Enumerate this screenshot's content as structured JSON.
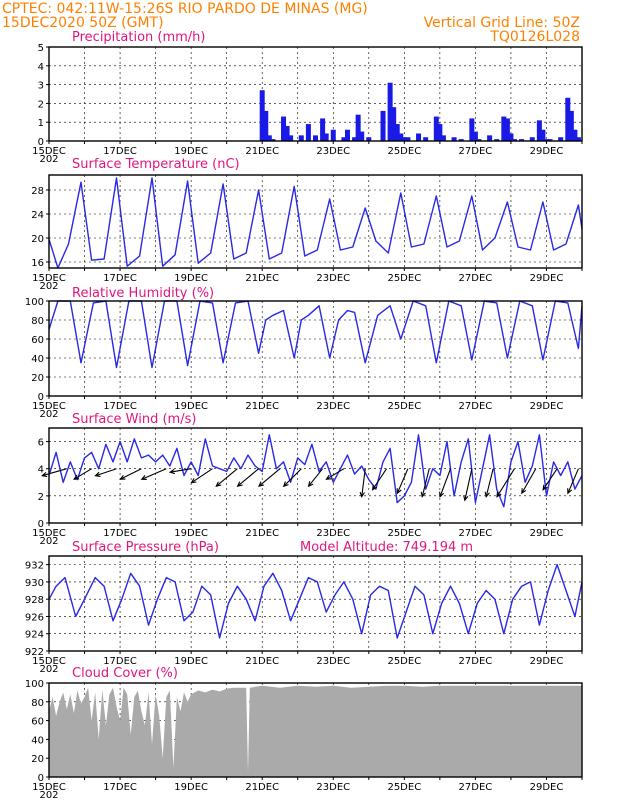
{
  "header": {
    "left_line1": "CPTEC:   042:11W-15:26S  RIO PARDO DE MINAS (MG)",
    "left_line2": "15DEC2020 50Z (GMT)",
    "right_line2": "Vertical Grid Line: 50Z",
    "right_line3": "TQ0126L028"
  },
  "colors": {
    "line": "#2929e6",
    "bars": "#1a1ae6",
    "cloud": "#aaaaaa",
    "title": "#e0167e",
    "header": "#ff8000"
  },
  "x_axis": {
    "start_day": 15,
    "end_day": 30,
    "tick_labels": [
      "15DEC",
      "17DEC",
      "19DEC",
      "21DEC",
      "23DEC",
      "25DEC",
      "27DEC",
      "29DEC"
    ],
    "year_label": "202"
  },
  "chart_data": [
    {
      "type": "bar",
      "title": "Precipitation (mm/h)",
      "ylim": [
        0,
        5
      ],
      "yticks": [
        0,
        1,
        2,
        3,
        4,
        5
      ],
      "series": [
        {
          "x": [
            21.0,
            21.1,
            21.2,
            21.3,
            21.6,
            21.7,
            21.8,
            22.1,
            22.3,
            22.5,
            22.7,
            22.8,
            23.0,
            23.3,
            23.4,
            23.6,
            23.7,
            23.8,
            24.0,
            24.4,
            24.6,
            24.7,
            24.8,
            24.9,
            25.0,
            25.1,
            25.4,
            25.6,
            25.9,
            26.0,
            26.1,
            26.4,
            26.6,
            26.9,
            27.0,
            27.1,
            27.4,
            27.6,
            27.8,
            27.9,
            28.0,
            28.1,
            28.3,
            28.6,
            28.8,
            28.9,
            29.0,
            29.1,
            29.4,
            29.6,
            29.7,
            29.8,
            29.9
          ],
          "values": [
            2.7,
            1.6,
            0.3,
            0.1,
            1.3,
            0.8,
            0.3,
            0.3,
            0.9,
            0.3,
            1.2,
            0.4,
            0.6,
            0.2,
            0.6,
            0.2,
            1.4,
            0.5,
            0.2,
            1.6,
            3.1,
            1.8,
            0.9,
            0.4,
            0.2,
            0.2,
            0.4,
            0.2,
            1.3,
            0.9,
            0.3,
            0.2,
            0.1,
            1.2,
            0.5,
            0.1,
            0.3,
            0.1,
            1.3,
            1.2,
            0.4,
            0.1,
            0.1,
            0.2,
            1.1,
            0.6,
            0.1,
            0.1,
            0.2,
            2.3,
            1.6,
            0.6,
            0.2
          ]
        }
      ]
    },
    {
      "type": "line",
      "title": "Surface Temperature (nC)",
      "ylim": [
        15,
        30.5
      ],
      "yticks": [
        16,
        20,
        24,
        28
      ],
      "series": [
        {
          "x": [
            15.0,
            15.25,
            15.55,
            15.9,
            16.2,
            16.55,
            16.9,
            17.2,
            17.55,
            17.9,
            18.2,
            18.55,
            18.9,
            19.2,
            19.55,
            19.9,
            20.2,
            20.55,
            20.9,
            21.2,
            21.55,
            21.9,
            22.2,
            22.55,
            22.9,
            23.2,
            23.55,
            23.9,
            24.2,
            24.55,
            24.9,
            25.2,
            25.55,
            25.9,
            26.2,
            26.55,
            26.9,
            27.2,
            27.55,
            27.9,
            28.2,
            28.55,
            28.9,
            29.2,
            29.55,
            29.9,
            30.0
          ],
          "values": [
            19.8,
            15.0,
            19.0,
            29.3,
            16.3,
            16.5,
            30.0,
            15.3,
            17.0,
            30.0,
            15.3,
            17.2,
            29.5,
            15.8,
            17.5,
            29.0,
            16.5,
            17.5,
            28.0,
            16.5,
            17.5,
            28.6,
            17.0,
            18.0,
            26.5,
            18.0,
            18.5,
            25.0,
            19.5,
            17.5,
            27.5,
            18.5,
            19.0,
            27.0,
            18.5,
            19.5,
            27.0,
            18.0,
            20.0,
            26.0,
            18.5,
            18.0,
            26.0,
            18.0,
            19.0,
            25.5,
            21.5
          ]
        }
      ]
    },
    {
      "type": "line",
      "title": "Relative Humidity (%)",
      "ylim": [
        0,
        100
      ],
      "yticks": [
        0,
        20,
        40,
        60,
        80,
        100
      ],
      "series": [
        {
          "x": [
            15.0,
            15.25,
            15.6,
            15.9,
            16.25,
            16.6,
            16.9,
            17.25,
            17.6,
            17.9,
            18.25,
            18.6,
            18.9,
            19.25,
            19.6,
            19.9,
            20.25,
            20.6,
            20.9,
            21.1,
            21.3,
            21.6,
            21.9,
            22.1,
            22.3,
            22.6,
            22.9,
            23.15,
            23.4,
            23.6,
            23.9,
            24.25,
            24.6,
            24.9,
            25.25,
            25.6,
            25.9,
            26.25,
            26.6,
            26.9,
            27.25,
            27.6,
            27.9,
            28.25,
            28.6,
            28.9,
            29.25,
            29.6,
            29.9,
            30.0
          ],
          "values": [
            70,
            100,
            100,
            35,
            98,
            100,
            30,
            100,
            100,
            30,
            100,
            100,
            32,
            100,
            98,
            35,
            98,
            100,
            45,
            80,
            85,
            90,
            40,
            80,
            85,
            95,
            40,
            80,
            90,
            88,
            35,
            85,
            95,
            60,
            100,
            95,
            35,
            100,
            95,
            38,
            100,
            98,
            40,
            100,
            95,
            38,
            100,
            98,
            50,
            95
          ]
        }
      ]
    },
    {
      "type": "line",
      "title": "Surface Wind (m/s)",
      "ylim": [
        0,
        7
      ],
      "yticks": [
        0,
        2,
        4,
        6
      ],
      "series": [
        {
          "x": [
            15.0,
            15.2,
            15.4,
            15.6,
            15.8,
            16.0,
            16.2,
            16.4,
            16.6,
            16.8,
            17.0,
            17.2,
            17.4,
            17.6,
            17.8,
            18.0,
            18.2,
            18.4,
            18.6,
            18.8,
            19.0,
            19.2,
            19.4,
            19.6,
            19.8,
            20.0,
            20.2,
            20.4,
            20.6,
            20.8,
            21.0,
            21.2,
            21.4,
            21.6,
            21.8,
            22.0,
            22.2,
            22.4,
            22.6,
            22.8,
            23.0,
            23.2,
            23.4,
            23.6,
            23.8,
            24.0,
            24.2,
            24.4,
            24.6,
            24.8,
            25.0,
            25.2,
            25.4,
            25.6,
            25.8,
            26.0,
            26.2,
            26.4,
            26.6,
            26.8,
            27.0,
            27.2,
            27.4,
            27.6,
            27.8,
            28.0,
            28.2,
            28.4,
            28.6,
            28.8,
            29.0,
            29.2,
            29.4,
            29.6,
            29.8,
            30.0
          ],
          "values": [
            3.5,
            5.2,
            3.0,
            4.5,
            3.2,
            4.8,
            5.2,
            4.0,
            5.8,
            4.5,
            6.0,
            4.5,
            6.2,
            4.8,
            5.0,
            4.5,
            5.0,
            4.2,
            5.5,
            3.5,
            4.5,
            3.5,
            6.2,
            4.2,
            4.0,
            3.8,
            4.8,
            4.0,
            5.0,
            4.2,
            3.8,
            6.5,
            4.0,
            4.5,
            3.0,
            4.8,
            4.3,
            5.8,
            3.8,
            4.5,
            3.0,
            4.0,
            5.0,
            3.6,
            4.2,
            3.2,
            2.5,
            4.5,
            5.5,
            1.5,
            2.0,
            3.0,
            6.5,
            2.5,
            4.0,
            3.5,
            6.0,
            2.0,
            4.5,
            6.2,
            1.5,
            4.0,
            6.5,
            2.5,
            1.2,
            4.5,
            6.0,
            3.0,
            4.2,
            6.5,
            2.0,
            4.5,
            3.5,
            4.5,
            2.5,
            3.5
          ]
        }
      ],
      "wind_arrows": {
        "x": [
          15.5,
          16.2,
          16.9,
          17.6,
          18.3,
          19.0,
          19.6,
          20.3,
          20.9,
          21.5,
          22.1,
          22.7,
          23.3,
          23.9,
          24.5,
          25.1,
          25.7,
          26.3,
          26.9,
          27.5,
          28.1,
          28.7,
          29.3,
          29.9
        ],
        "u": [
          -3.5,
          -2.5,
          -3.0,
          -3.0,
          -3.5,
          -3.0,
          -3.0,
          -3.0,
          -3.0,
          -3.0,
          -2.5,
          -2.0,
          -2.5,
          -0.5,
          -2.0,
          -1.5,
          -1.0,
          -1.5,
          -1.0,
          -1.0,
          -2.5,
          -2.0,
          -2.0,
          -1.5
        ],
        "v": [
          -1.0,
          -1.5,
          -1.0,
          -1.5,
          -1.5,
          -0.5,
          -2.0,
          -2.5,
          -2.5,
          -2.5,
          -2.5,
          -2.5,
          -1.5,
          -4.0,
          -3.0,
          -3.5,
          -4.0,
          -4.0,
          -4.5,
          -4.0,
          -4.0,
          -3.5,
          -3.0,
          -3.5
        ]
      }
    },
    {
      "type": "line",
      "title": "Surface Pressure (hPa)",
      "subtitle": "Model Altitude: 749.194 m",
      "ylim": [
        922,
        933
      ],
      "yticks": [
        922,
        924,
        926,
        928,
        930,
        932
      ],
      "series": [
        {
          "x": [
            15.0,
            15.2,
            15.45,
            15.75,
            16.0,
            16.3,
            16.55,
            16.8,
            17.05,
            17.3,
            17.55,
            17.8,
            18.05,
            18.3,
            18.55,
            18.8,
            19.05,
            19.3,
            19.55,
            19.8,
            20.05,
            20.3,
            20.55,
            20.8,
            21.05,
            21.3,
            21.55,
            21.8,
            22.05,
            22.3,
            22.55,
            22.8,
            23.05,
            23.3,
            23.55,
            23.8,
            24.05,
            24.3,
            24.55,
            24.8,
            25.05,
            25.3,
            25.55,
            25.8,
            26.05,
            26.3,
            26.55,
            26.8,
            27.05,
            27.3,
            27.55,
            27.8,
            28.05,
            28.3,
            28.55,
            28.8,
            29.05,
            29.3,
            29.55,
            29.8,
            30.0
          ],
          "values": [
            928.0,
            929.5,
            930.5,
            926.0,
            928.0,
            930.5,
            929.5,
            925.5,
            928.0,
            931.0,
            929.5,
            925.0,
            928.0,
            930.5,
            930.0,
            925.5,
            926.5,
            929.5,
            928.5,
            923.5,
            927.5,
            929.5,
            928.0,
            925.5,
            929.5,
            931.0,
            929.0,
            925.5,
            928.0,
            930.5,
            930.0,
            926.5,
            928.5,
            930.0,
            928.0,
            924.0,
            928.5,
            929.5,
            929.0,
            923.5,
            926.5,
            929.5,
            928.5,
            924.0,
            927.5,
            929.5,
            927.5,
            924.0,
            927.5,
            929.0,
            928.0,
            924.0,
            928.0,
            929.5,
            930.0,
            925.0,
            929.0,
            932.0,
            929.0,
            926.0,
            930.0
          ]
        }
      ]
    },
    {
      "type": "area",
      "title": "Cloud Cover (%)",
      "ylim": [
        0,
        100
      ],
      "yticks": [
        0,
        20,
        40,
        60,
        80,
        100
      ],
      "series": [
        {
          "x": [
            15.0,
            15.1,
            15.2,
            15.3,
            15.4,
            15.5,
            15.6,
            15.7,
            15.8,
            15.9,
            16.0,
            16.1,
            16.2,
            16.3,
            16.4,
            16.5,
            16.6,
            16.7,
            16.8,
            16.9,
            17.0,
            17.1,
            17.2,
            17.3,
            17.4,
            17.5,
            17.6,
            17.7,
            17.8,
            17.9,
            18.0,
            18.1,
            18.2,
            18.3,
            18.4,
            18.5,
            18.6,
            18.7,
            18.8,
            18.9,
            19.0,
            19.2,
            19.4,
            19.6,
            19.8,
            20.0,
            20.2,
            20.4,
            20.55,
            20.6,
            20.65,
            20.8,
            21.0,
            21.5,
            22.0,
            22.5,
            23.0,
            23.5,
            24.0,
            24.5,
            25.0,
            25.5,
            26.0,
            26.5,
            27.0,
            27.5,
            28.0,
            28.5,
            29.0,
            29.5,
            30.0
          ],
          "values": [
            70,
            85,
            65,
            80,
            90,
            72,
            88,
            68,
            92,
            78,
            85,
            95,
            60,
            90,
            40,
            93,
            55,
            88,
            95,
            75,
            60,
            95,
            88,
            45,
            85,
            92,
            70,
            55,
            90,
            35,
            88,
            65,
            20,
            85,
            92,
            10,
            85,
            70,
            90,
            80,
            88,
            92,
            90,
            93,
            91,
            94,
            95,
            95,
            95,
            5,
            95,
            96,
            97,
            95,
            97,
            96,
            97,
            95,
            96,
            97,
            97,
            96,
            97,
            97,
            97,
            97,
            97,
            97,
            97,
            97,
            97
          ]
        }
      ]
    }
  ]
}
